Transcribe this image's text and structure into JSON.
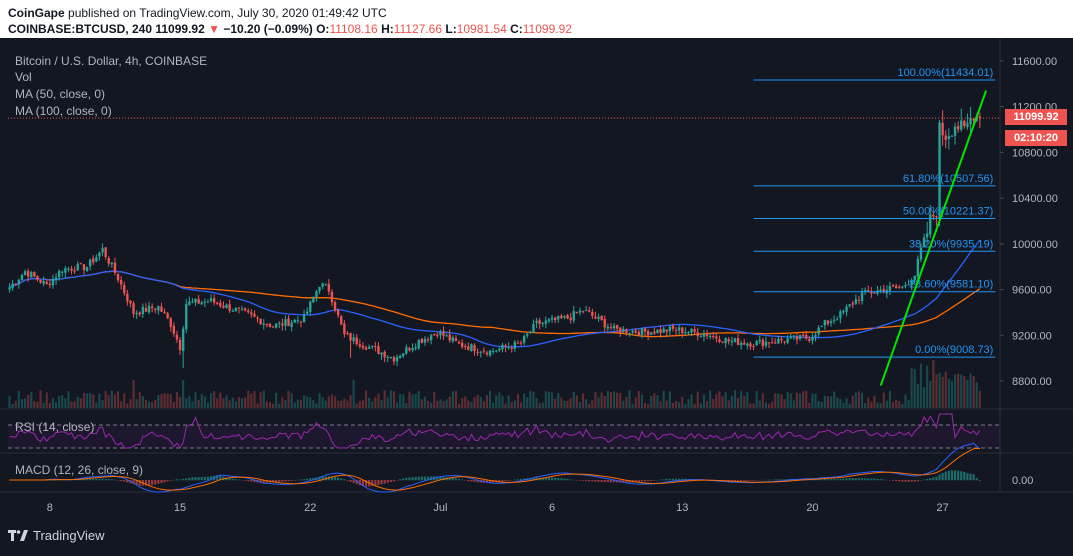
{
  "header": {
    "publisher": "CoinGape",
    "published_text": "published on TradingView.com, July 30, 2020 01:49:42 UTC",
    "symbol": "COINBASE:BTCUSD, 240",
    "last": "11099.92",
    "change": "−10.20 (−0.09%)",
    "o_label": "O:",
    "o": "11108.16",
    "h_label": "H:",
    "h": "11127.66",
    "l_label": "L:",
    "l": "10981.54",
    "c_label": "C:",
    "c": "11099.92"
  },
  "legend": {
    "title": "Bitcoin / U.S. Dollar, 4h, COINBASE",
    "vol": "Vol",
    "ma50": "MA (50, close, 0)",
    "ma100": "MA (100, close, 0)",
    "rsi": "RSI (14, close)",
    "macd": "MACD (12, 26, close, 9)"
  },
  "price_tags": {
    "last": "11099.92",
    "countdown": "02:10:20"
  },
  "footer": {
    "brand": "TradingView"
  },
  "colors": {
    "up": "#26a69a",
    "down": "#ef5350",
    "ma50": "#2962ff",
    "ma100": "#ff6d00",
    "fib": "#2196f3",
    "trend": "#00e600",
    "rsi": "#9c27b0"
  },
  "chart_data": {
    "type": "candlestick",
    "timeframe": "4h",
    "ylim": [
      8600,
      11700
    ],
    "y_ticks": [
      "11600.00",
      "11200.00",
      "10800.00",
      "10400.00",
      "10000.00",
      "9600.00",
      "9200.00",
      "8800.00"
    ],
    "y_tick_values": [
      11600,
      11200,
      10800,
      10400,
      10000,
      9600,
      9200,
      8800
    ],
    "x_ticks": [
      {
        "label": "8",
        "bar": 13
      },
      {
        "label": "15",
        "bar": 55
      },
      {
        "label": "22",
        "bar": 97
      },
      {
        "label": "Jul",
        "bar": 139
      },
      {
        "label": "6",
        "bar": 175
      },
      {
        "label": "13",
        "bar": 217
      },
      {
        "label": "20",
        "bar": 259
      },
      {
        "label": "27",
        "bar": 301
      }
    ],
    "price_anchors": [
      [
        0,
        9620
      ],
      [
        5,
        9760
      ],
      [
        12,
        9640
      ],
      [
        17,
        9780
      ],
      [
        25,
        9800
      ],
      [
        30,
        9950
      ],
      [
        35,
        9700
      ],
      [
        40,
        9400
      ],
      [
        48,
        9450
      ],
      [
        52,
        9300
      ],
      [
        55,
        9100
      ],
      [
        57,
        9480
      ],
      [
        65,
        9500
      ],
      [
        75,
        9400
      ],
      [
        85,
        9280
      ],
      [
        95,
        9350
      ],
      [
        100,
        9650
      ],
      [
        103,
        9600
      ],
      [
        108,
        9200
      ],
      [
        114,
        9120
      ],
      [
        120,
        9050
      ],
      [
        124,
        9000
      ],
      [
        132,
        9150
      ],
      [
        138,
        9230
      ],
      [
        145,
        9120
      ],
      [
        155,
        9060
      ],
      [
        165,
        9130
      ],
      [
        170,
        9300
      ],
      [
        180,
        9350
      ],
      [
        185,
        9420
      ],
      [
        195,
        9250
      ],
      [
        205,
        9230
      ],
      [
        215,
        9250
      ],
      [
        225,
        9210
      ],
      [
        232,
        9150
      ],
      [
        240,
        9130
      ],
      [
        250,
        9160
      ],
      [
        258,
        9180
      ],
      [
        263,
        9300
      ],
      [
        268,
        9380
      ],
      [
        275,
        9560
      ],
      [
        282,
        9600
      ],
      [
        288,
        9620
      ],
      [
        292,
        9730
      ],
      [
        294,
        9950
      ],
      [
        296,
        10100
      ],
      [
        297,
        10200
      ],
      [
        299,
        10300
      ],
      [
        300,
        11000
      ],
      [
        302,
        10950
      ],
      [
        305,
        11050
      ],
      [
        308,
        10980
      ],
      [
        311,
        11150
      ],
      [
        313,
        11099.92
      ]
    ],
    "last_close": 11099.92,
    "fib_levels": [
      {
        "label": "100.00%(11434.01)",
        "value": 11434.01
      },
      {
        "label": "61.80%(10507.56)",
        "value": 10507.56
      },
      {
        "label": "50.00%(10221.37)",
        "value": 10221.37
      },
      {
        "label": "38.20%(9935.19)",
        "value": 9935.19
      },
      {
        "label": "23.60%(9581.10)",
        "value": 9581.1
      },
      {
        "label": "0.00%(9008.73)",
        "value": 9008.73
      }
    ],
    "fib_bar_range": [
      240,
      318
    ],
    "trendline": [
      [
        281,
        8760
      ],
      [
        315,
        11340
      ]
    ],
    "macd_tick": "0.00"
  }
}
